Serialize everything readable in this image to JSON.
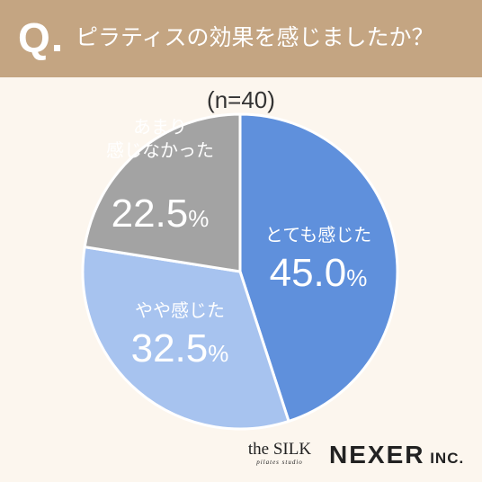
{
  "header": {
    "q_mark": "Q",
    "question": "ピラティスの効果を感じましたか？"
  },
  "sample_size": "(n=40)",
  "chart_data": {
    "type": "pie",
    "slices": [
      {
        "label": "とても感じた",
        "value": 45.0,
        "value_text": "45.0",
        "color": "#5f90dc"
      },
      {
        "label": "やや感じた",
        "value": 32.5,
        "value_text": "32.5",
        "color": "#a7c3ef"
      },
      {
        "label": "あまり\n感じなかった",
        "value": 22.5,
        "value_text": "22.5",
        "color": "#a3a3a3"
      }
    ],
    "percent_sign": "%",
    "start_angle": "12 o'clock",
    "direction": "clockwise"
  },
  "logos": {
    "silk_main": "the SILK",
    "silk_sub": "pilates studio",
    "nexer_main": "NEXER",
    "nexer_suffix": " INC."
  }
}
